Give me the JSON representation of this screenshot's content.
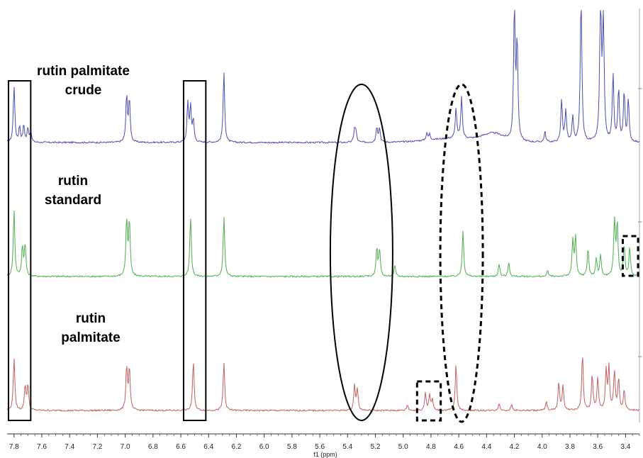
{
  "chart_data": {
    "type": "line",
    "title": "",
    "xlabel": "f1 (ppm)",
    "ylabel": "",
    "x_reversed": true,
    "xlim": [
      7.85,
      3.3
    ],
    "x_ticks": [
      7.8,
      7.6,
      7.4,
      7.2,
      7.0,
      6.8,
      6.6,
      6.4,
      6.2,
      6.0,
      5.8,
      5.6,
      5.4,
      5.2,
      5.0,
      4.8,
      4.6,
      4.4,
      4.2,
      4.0,
      3.8,
      3.6,
      3.4
    ],
    "x_tick_labels": [
      "7.8",
      "7.6",
      "7.4",
      "7.2",
      "7.0",
      "6.8",
      "6.6",
      "6.4",
      "6.2",
      "6.0",
      "5.8",
      "5.6",
      "5.4",
      "5.2",
      "5.0",
      "4.8",
      "4.6",
      "4.4",
      "4.2",
      "4.0",
      "3.8",
      "3.6",
      "3.4"
    ],
    "grid": false,
    "series": [
      {
        "name": "rutin palmitate crude",
        "label_lines": [
          "rutin palmitate",
          "crude"
        ],
        "color": "#4a4db0",
        "label_color": "#1f2a7a",
        "peaks": [
          [
            7.8,
            80
          ],
          [
            7.76,
            22
          ],
          [
            7.73,
            24
          ],
          [
            7.7,
            20
          ],
          [
            7.68,
            14
          ],
          [
            6.99,
            65
          ],
          [
            6.97,
            60
          ],
          [
            6.55,
            55
          ],
          [
            6.53,
            50
          ],
          [
            6.51,
            30
          ],
          [
            6.29,
            100
          ],
          [
            5.35,
            18
          ],
          [
            5.34,
            14
          ],
          [
            5.19,
            22
          ],
          [
            5.17,
            20
          ],
          [
            4.83,
            10
          ],
          [
            4.81,
            8
          ],
          [
            4.62,
            42
          ],
          [
            4.58,
            58
          ],
          [
            4.2,
            190
          ],
          [
            4.18,
            140
          ],
          [
            3.98,
            15
          ],
          [
            3.86,
            60
          ],
          [
            3.83,
            45
          ],
          [
            3.78,
            35
          ],
          [
            3.72,
            220
          ],
          [
            3.58,
            220
          ],
          [
            3.56,
            180
          ],
          [
            3.49,
            95
          ],
          [
            3.45,
            75
          ],
          [
            3.41,
            70
          ],
          [
            3.38,
            60
          ]
        ]
      },
      {
        "name": "rutin standard",
        "label_lines": [
          "rutin",
          "standard"
        ],
        "color": "#4fae4f",
        "label_color": "#2a9a2a",
        "peaks": [
          [
            7.8,
            95
          ],
          [
            7.74,
            42
          ],
          [
            7.72,
            45
          ],
          [
            6.99,
            80
          ],
          [
            6.97,
            78
          ],
          [
            6.53,
            85
          ],
          [
            6.29,
            85
          ],
          [
            5.19,
            40
          ],
          [
            5.17,
            38
          ],
          [
            5.06,
            15
          ],
          [
            4.57,
            65
          ],
          [
            4.31,
            18
          ],
          [
            4.24,
            20
          ],
          [
            3.96,
            8
          ],
          [
            3.78,
            50
          ],
          [
            3.76,
            55
          ],
          [
            3.67,
            40
          ],
          [
            3.61,
            25
          ],
          [
            3.58,
            30
          ],
          [
            3.48,
            80
          ],
          [
            3.46,
            75
          ],
          [
            3.41,
            45
          ],
          [
            3.37,
            40
          ]
        ]
      },
      {
        "name": "rutin palmitate",
        "label_lines": [
          "rutin",
          "palmitate"
        ],
        "color": "#c06060",
        "label_color": "#c02020",
        "peaks": [
          [
            7.8,
            75
          ],
          [
            7.72,
            35
          ],
          [
            7.7,
            36
          ],
          [
            6.99,
            62
          ],
          [
            6.97,
            60
          ],
          [
            6.51,
            70
          ],
          [
            6.29,
            68
          ],
          [
            5.35,
            35
          ],
          [
            5.33,
            30
          ],
          [
            4.97,
            8
          ],
          [
            4.84,
            25
          ],
          [
            4.81,
            22
          ],
          [
            4.79,
            15
          ],
          [
            4.62,
            65
          ],
          [
            4.31,
            10
          ],
          [
            4.22,
            8
          ],
          [
            3.97,
            12
          ],
          [
            3.88,
            40
          ],
          [
            3.85,
            35
          ],
          [
            3.71,
            80
          ],
          [
            3.64,
            50
          ],
          [
            3.6,
            45
          ],
          [
            3.54,
            55
          ],
          [
            3.52,
            60
          ],
          [
            3.48,
            55
          ],
          [
            3.45,
            45
          ],
          [
            3.41,
            30
          ]
        ]
      }
    ],
    "annotations": [
      {
        "shape": "rectangle",
        "style": "solid",
        "x_range": [
          7.84,
          7.68
        ],
        "span": "all"
      },
      {
        "shape": "rectangle",
        "style": "solid",
        "x_range": [
          6.58,
          6.42
        ],
        "span": "all"
      },
      {
        "shape": "ellipse",
        "style": "solid",
        "center_ppm": 5.3,
        "span": "all"
      },
      {
        "shape": "ellipse",
        "style": "dashed",
        "center_ppm": 4.58,
        "span": "all"
      },
      {
        "shape": "rectangle",
        "style": "dashed",
        "x_range": [
          3.42,
          3.31
        ],
        "series": "rutin standard"
      },
      {
        "shape": "rectangle",
        "style": "dashed",
        "x_range": [
          4.9,
          4.73
        ],
        "series": "rutin palmitate"
      }
    ]
  }
}
